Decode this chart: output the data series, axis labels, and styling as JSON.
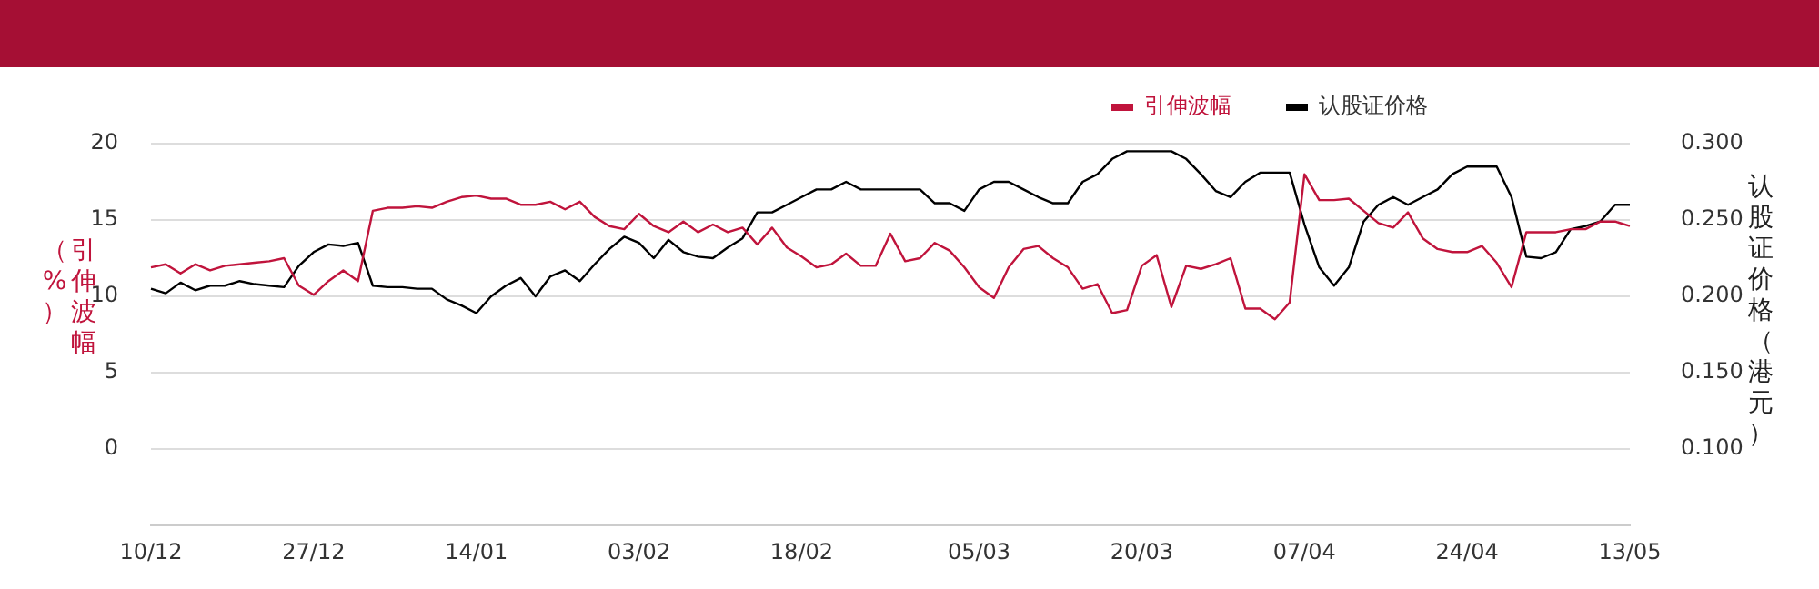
{
  "chart_data": {
    "type": "line",
    "ylabel": "引伸波幅（%）",
    "y2label": "认股证价格（港元）",
    "categories": [
      "10/12",
      null,
      null,
      null,
      null,
      null,
      null,
      null,
      null,
      null,
      null,
      "27/12",
      null,
      null,
      null,
      null,
      null,
      null,
      null,
      null,
      null,
      null,
      "14/01",
      null,
      null,
      null,
      null,
      null,
      null,
      null,
      null,
      null,
      null,
      "03/02",
      null,
      null,
      null,
      null,
      null,
      null,
      null,
      null,
      null,
      null,
      "18/02",
      null,
      null,
      null,
      null,
      null,
      null,
      null,
      null,
      null,
      null,
      null,
      "05/03",
      null,
      null,
      null,
      null,
      null,
      null,
      null,
      null,
      null,
      null,
      "20/03",
      null,
      null,
      null,
      null,
      null,
      null,
      null,
      null,
      null,
      null,
      "07/04",
      null,
      null,
      null,
      null,
      null,
      null,
      null,
      null,
      null,
      null,
      "24/04",
      null,
      null,
      null,
      null,
      null,
      null,
      null,
      null,
      null,
      null,
      "13/05"
    ],
    "series": [
      {
        "name": "引伸波幅",
        "color": "#c0143c",
        "values": [
          11.9,
          12.1,
          11.5,
          12.1,
          11.7,
          12.0,
          12.1,
          12.2,
          12.3,
          12.5,
          10.7,
          10.1,
          11.0,
          11.7,
          11.0,
          15.6,
          15.8,
          15.8,
          15.9,
          15.8,
          16.2,
          16.5,
          16.6,
          16.4,
          16.4,
          16.0,
          16.0,
          16.2,
          15.7,
          16.2,
          15.2,
          14.6,
          14.4,
          15.4,
          14.6,
          14.2,
          14.9,
          14.2,
          14.7,
          14.2,
          14.5,
          13.4,
          14.5,
          13.2,
          12.6,
          11.9,
          12.1,
          12.8,
          12.0,
          12.0,
          14.1,
          12.3,
          12.5,
          13.5,
          13.0,
          11.9,
          10.6,
          9.9,
          11.9,
          13.1,
          13.3,
          12.5,
          11.9,
          10.5,
          10.8,
          8.9,
          9.1,
          12.0,
          12.7,
          9.3,
          12.0,
          11.8,
          12.1,
          12.5,
          9.2,
          9.2,
          8.5,
          9.6,
          18.0,
          16.3,
          16.3,
          16.4,
          15.6,
          14.8,
          14.5,
          15.5,
          13.8,
          13.1,
          12.9,
          12.9,
          13.3,
          12.2,
          10.6,
          14.2,
          14.2,
          14.2,
          14.4,
          14.4,
          14.9,
          14.9,
          14.6
        ]
      },
      {
        "name": "认股证价格",
        "color": "#000000",
        "axis": "y2",
        "values": [
          0.205,
          0.202,
          0.209,
          0.204,
          0.207,
          0.207,
          0.21,
          0.208,
          0.207,
          0.206,
          0.22,
          0.229,
          0.234,
          0.233,
          0.235,
          0.207,
          0.206,
          0.206,
          0.205,
          0.205,
          0.198,
          0.194,
          0.189,
          0.2,
          0.207,
          0.212,
          0.2,
          0.213,
          0.217,
          0.21,
          0.221,
          0.231,
          0.239,
          0.235,
          0.225,
          0.237,
          0.229,
          0.226,
          0.225,
          0.232,
          0.238,
          0.255,
          0.255,
          0.26,
          0.265,
          0.27,
          0.27,
          0.275,
          0.27,
          0.27,
          0.27,
          0.27,
          0.27,
          0.261,
          0.261,
          0.256,
          0.27,
          0.275,
          0.275,
          0.27,
          0.265,
          0.261,
          0.261,
          0.275,
          0.28,
          0.29,
          0.295,
          0.295,
          0.295,
          0.295,
          0.29,
          0.28,
          0.269,
          0.265,
          0.275,
          0.281,
          0.281,
          0.281,
          0.247,
          0.219,
          0.207,
          0.219,
          0.249,
          0.26,
          0.265,
          0.26,
          0.265,
          0.27,
          0.28,
          0.285,
          0.285,
          0.285,
          0.265,
          0.226,
          0.225,
          0.229,
          0.244,
          0.246,
          0.249,
          0.26,
          0.26
        ]
      }
    ],
    "ylim": [
      -5,
      20
    ],
    "yticks": [
      0,
      5,
      10,
      15,
      20
    ],
    "y2lim": [
      0.05,
      0.3
    ],
    "y2ticks": [
      {
        "value": 0.1,
        "label": "0.100"
      },
      {
        "value": 0.15,
        "label": "0.150"
      },
      {
        "value": 0.2,
        "label": "0.200"
      },
      {
        "value": 0.25,
        "label": "0.250"
      },
      {
        "value": 0.3,
        "label": "0.300"
      }
    ],
    "grid": "y",
    "legend": "top right",
    "marker": "none",
    "line_style": "solid"
  }
}
